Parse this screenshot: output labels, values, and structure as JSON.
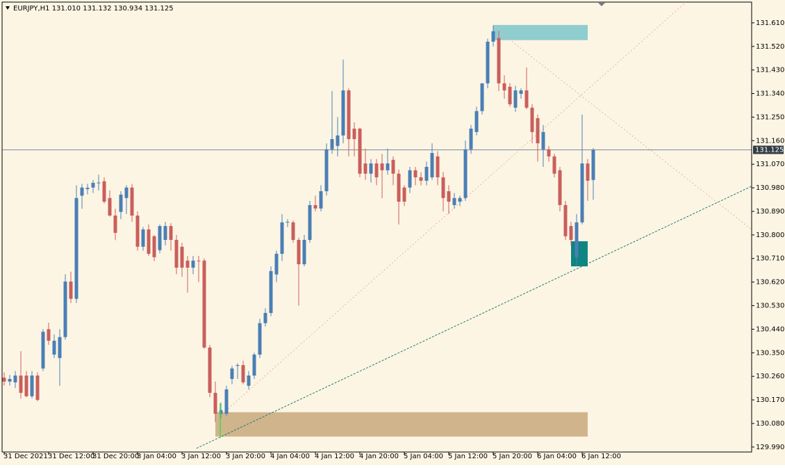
{
  "chart_data": {
    "type": "candlestick",
    "title": "EURJPY,H1  131.010 131.132 130.934 131.125",
    "categories": [
      "31 Dec 2021",
      null,
      null,
      null,
      null,
      null,
      null,
      null,
      "31 Dec 12:00",
      null,
      null,
      null,
      null,
      null,
      null,
      null,
      "31 Dec 20:00",
      null,
      null,
      null,
      null,
      null,
      null,
      null,
      "3 Jan 04:00",
      null,
      null,
      null,
      null,
      null,
      null,
      null,
      "3 Jan 12:00",
      null,
      null,
      null,
      null,
      null,
      null,
      null,
      "3 Jan 20:00",
      null,
      null,
      null,
      null,
      null,
      null,
      null,
      "4 Jan 04:00",
      null,
      null,
      null,
      null,
      null,
      null,
      null,
      "4 Jan 12:00",
      null,
      null,
      null,
      null,
      null,
      null,
      null,
      "4 Jan 20:00",
      null,
      null,
      null,
      null,
      null,
      null,
      null,
      "5 Jan 04:00",
      null,
      null,
      null,
      null,
      null,
      null,
      null,
      "5 Jan 12:00",
      null,
      null,
      null,
      null,
      null,
      null,
      null,
      "5 Jan 20:00",
      null,
      null,
      null,
      null,
      null,
      null,
      null,
      "6 Jan 04:00",
      null,
      null,
      null,
      null,
      null,
      null,
      null,
      "6 Jan 12:00",
      null,
      null
    ],
    "open": [
      130.255,
      130.24,
      130.237,
      130.263,
      130.263,
      130.184,
      130.263,
      130.29,
      130.44,
      130.343,
      130.33,
      130.41,
      130.622,
      130.556,
      130.95,
      130.975,
      130.981,
      130.999,
      131.005,
      130.941,
      130.874,
      130.888,
      130.941,
      130.981,
      130.874,
      130.755,
      130.821,
      130.795,
      130.742,
      130.781,
      130.834,
      130.781,
      130.755,
      130.702,
      130.675,
      130.702,
      130.702,
      130.37,
      130.197,
      130.117,
      130.117,
      130.25,
      130.3,
      130.303,
      130.224,
      130.263,
      130.343,
      130.463,
      130.502,
      130.649,
      130.728,
      130.848,
      130.848,
      130.781,
      130.688,
      130.781,
      130.914,
      130.901,
      130.967,
      131.127,
      131.14,
      131.18,
      131.352,
      131.206,
      131.206,
      131.073,
      131.034,
      131.073,
      131.073,
      131.047,
      131.087,
      131.034,
      130.981,
      130.981,
      131.047,
      131.02,
      131.007,
      131.02,
      131.1,
      131.02,
      130.967,
      130.914,
      130.927,
      130.941,
      131.127,
      131.193,
      131.273,
      131.379,
      131.538,
      131.552,
      131.379,
      131.366,
      131.286,
      131.339,
      131.352,
      131.286,
      131.246,
      131.127,
      131.127,
      131.1,
      131.047,
      130.914,
      130.834,
      130.715,
      130.848,
      131.073,
      131.01
    ],
    "high": [
      130.275,
      130.265,
      130.28,
      130.356,
      130.28,
      130.28,
      130.275,
      130.44,
      130.465,
      130.42,
      130.44,
      130.65,
      130.66,
      130.99,
      130.995,
      130.995,
      131.01,
      131.03,
      131.02,
      130.97,
      130.9,
      130.967,
      130.99,
      130.995,
      130.89,
      130.83,
      130.84,
      130.8,
      130.84,
      130.85,
      130.845,
      130.8,
      130.77,
      130.72,
      130.72,
      130.72,
      130.71,
      130.38,
      130.24,
      130.16,
      130.224,
      130.3,
      130.31,
      130.32,
      130.28,
      130.35,
      130.48,
      130.52,
      130.68,
      130.74,
      130.88,
      130.86,
      130.855,
      130.79,
      130.8,
      130.93,
      130.95,
      130.99,
      131.15,
      131.35,
      131.25,
      131.47,
      131.36,
      131.23,
      131.21,
      131.13,
      131.09,
      131.09,
      131.11,
      131.13,
      131.1,
      131.05,
      130.99,
      131.06,
      131.06,
      131.04,
      131.08,
      131.15,
      131.12,
      131.04,
      130.99,
      130.96,
      130.95,
      131.16,
      131.22,
      131.29,
      131.38,
      131.55,
      131.6,
      131.58,
      131.41,
      131.38,
      131.37,
      131.36,
      131.44,
      131.3,
      131.26,
      131.22,
      131.14,
      131.11,
      131.06,
      130.93,
      130.85,
      130.88,
      131.26,
      131.09,
      131.132
    ],
    "low": [
      130.225,
      130.225,
      130.215,
      130.175,
      130.18,
      130.175,
      130.165,
      130.28,
      130.38,
      130.33,
      130.224,
      130.4,
      130.54,
      130.54,
      130.9,
      130.955,
      130.96,
      130.97,
      130.92,
      130.87,
      130.78,
      130.86,
      130.88,
      130.85,
      130.74,
      130.74,
      130.72,
      130.7,
      130.73,
      130.76,
      130.74,
      130.65,
      130.64,
      130.58,
      130.65,
      130.62,
      130.365,
      130.18,
      130.085,
      130.1,
      130.11,
      130.23,
      130.25,
      130.23,
      130.21,
      130.25,
      130.33,
      130.45,
      130.49,
      130.62,
      130.7,
      130.83,
      130.77,
      130.53,
      130.68,
      130.77,
      130.89,
      130.89,
      130.95,
      131.11,
      131.1,
      131.15,
      131.1,
      131.1,
      131.02,
      131.01,
      131.0,
      130.99,
      130.94,
      131.03,
      130.99,
      130.84,
      130.91,
      130.96,
      130.99,
      130.99,
      130.99,
      131.01,
      130.99,
      130.89,
      130.88,
      130.9,
      130.91,
      130.93,
      131.11,
      131.18,
      131.26,
      131.36,
      131.52,
      131.35,
      131.32,
      131.29,
      131.27,
      131.32,
      131.28,
      131.15,
      131.08,
      131.06,
      131.08,
      131.02,
      130.89,
      130.78,
      130.76,
      130.68,
      130.84,
      130.93,
      130.934
    ],
    "close": [
      130.24,
      130.25,
      130.263,
      130.197,
      130.184,
      130.263,
      130.17,
      130.43,
      130.396,
      130.396,
      130.41,
      130.622,
      130.556,
      130.941,
      130.981,
      130.98,
      130.999,
      131.0,
      130.927,
      130.874,
      130.808,
      130.954,
      130.981,
      130.874,
      130.755,
      130.821,
      130.728,
      130.715,
      130.834,
      130.834,
      130.781,
      130.675,
      130.675,
      130.675,
      130.702,
      130.7,
      130.37,
      130.197,
      130.117,
      130.131,
      130.21,
      130.29,
      130.303,
      130.237,
      130.263,
      130.343,
      130.463,
      130.502,
      130.662,
      130.728,
      130.848,
      130.85,
      130.781,
      130.688,
      130.781,
      130.914,
      130.901,
      130.967,
      131.127,
      131.166,
      131.18,
      131.352,
      131.166,
      131.166,
      131.034,
      131.034,
      131.073,
      131.02,
      131.047,
      131.073,
      131.034,
      130.927,
      130.927,
      131.047,
      131.02,
      131.007,
      131.06,
      131.113,
      131.02,
      130.941,
      130.927,
      130.941,
      130.941,
      131.127,
      131.206,
      131.273,
      131.379,
      131.538,
      131.578,
      131.379,
      131.352,
      131.299,
      131.352,
      131.352,
      131.286,
      131.193,
      131.15,
      131.193,
      131.1,
      131.034,
      130.914,
      130.795,
      130.781,
      130.848,
      131.073,
      131.007,
      131.125
    ],
    "up_color": "#4a7fb5",
    "down_color": "#c95f5c",
    "ylim": [
      129.971,
      131.684
    ],
    "yticks": [
      {
        "value": 131.61,
        "label": "131.610"
      },
      {
        "value": 131.52,
        "label": "131.520"
      },
      {
        "value": 131.43,
        "label": "131.430"
      },
      {
        "value": 131.34,
        "label": "131.340"
      },
      {
        "value": 131.25,
        "label": "131.250"
      },
      {
        "value": 131.16,
        "label": "131.160"
      },
      {
        "value": 131.07,
        "label": "131.070"
      },
      {
        "value": 130.98,
        "label": "130.980"
      },
      {
        "value": 130.89,
        "label": "130.890"
      },
      {
        "value": 130.8,
        "label": "130.800"
      },
      {
        "value": 130.71,
        "label": "130.710"
      },
      {
        "value": 130.62,
        "label": "130.620"
      },
      {
        "value": 130.53,
        "label": "130.530"
      },
      {
        "value": 130.44,
        "label": "130.440"
      },
      {
        "value": 130.35,
        "label": "130.350"
      },
      {
        "value": 130.26,
        "label": "130.260"
      },
      {
        "value": 130.17,
        "label": "130.170"
      },
      {
        "value": 130.08,
        "label": "130.080"
      },
      {
        "value": 129.99,
        "label": "129.990"
      }
    ],
    "current_price": {
      "value": 131.125,
      "label": "131.125"
    },
    "zones": [
      {
        "start": 88,
        "end": 105,
        "low": 131.544,
        "high": 131.602,
        "color": "#8fcdcf"
      },
      {
        "start": 38,
        "end": 105,
        "low": 130.03,
        "high": 130.123,
        "color": "#d0b48c"
      },
      {
        "start": 102,
        "end": 105,
        "low": 130.68,
        "high": 130.776,
        "color": "#0e8583"
      }
    ],
    "trendlines": [
      {
        "x": [
          34.6,
          134.5
        ],
        "y": [
          129.985,
          130.986
        ],
        "color": "#1a7a6e",
        "dash": "3,2"
      },
      {
        "x": [
          38.9,
          122.4
        ],
        "y": [
          130.11,
          131.684
        ],
        "color": "#e0b89a",
        "dash": "2,3"
      },
      {
        "x": [
          87.9,
          134.5
        ],
        "y": [
          131.597,
          130.821
        ],
        "color": "#e0b89a",
        "dash": "2,3"
      }
    ]
  }
}
